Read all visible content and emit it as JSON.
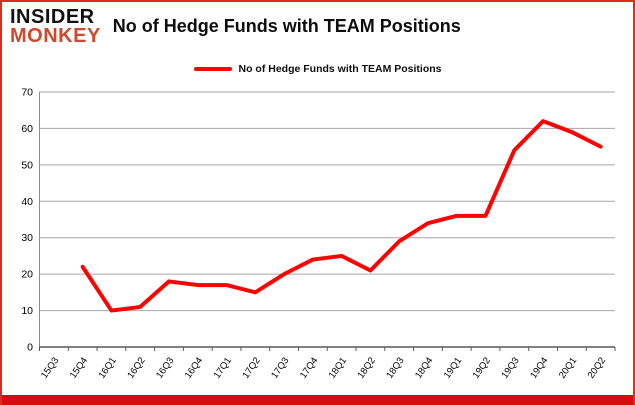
{
  "branding": {
    "logo_line1": "INSIDER",
    "logo_line2": "MONKEY",
    "logo_color_primary": "#111111",
    "logo_color_secondary": "#cd4a2e"
  },
  "header": {
    "title": "No of Hedge Funds with TEAM Positions"
  },
  "legend": {
    "label": "No of Hedge Funds with TEAM Positions",
    "swatch_color": "#fe0101"
  },
  "chart_data": {
    "type": "line",
    "title": "No of Hedge Funds with TEAM Positions",
    "categories": [
      "15Q3",
      "15Q4",
      "16Q1",
      "16Q2",
      "16Q3",
      "16Q4",
      "17Q1",
      "17Q2",
      "17Q3",
      "17Q4",
      "18Q1",
      "18Q2",
      "18Q3",
      "18Q4",
      "19Q1",
      "19Q2",
      "19Q3",
      "19Q4",
      "20Q1",
      "20Q2"
    ],
    "series": [
      {
        "name": "No of Hedge Funds with TEAM Positions",
        "color": "#fe0101",
        "values": [
          null,
          22,
          10,
          11,
          18,
          17,
          17,
          15,
          20,
          24,
          25,
          21,
          29,
          34,
          36,
          36,
          54,
          62,
          59,
          55
        ]
      }
    ],
    "xlabel": "",
    "ylabel": "",
    "ylim": [
      0,
      70
    ],
    "ytick_step": 10,
    "yticks": [
      0,
      10,
      20,
      30,
      40,
      50,
      60,
      70
    ],
    "grid": "horizontal",
    "gridline_color": "#a6a6a6",
    "axis_color": "#595959",
    "legend_position": "top-center"
  },
  "frame": {
    "border_color": "#dd2b1c",
    "bottom_bar_color": "#d40e0e"
  }
}
